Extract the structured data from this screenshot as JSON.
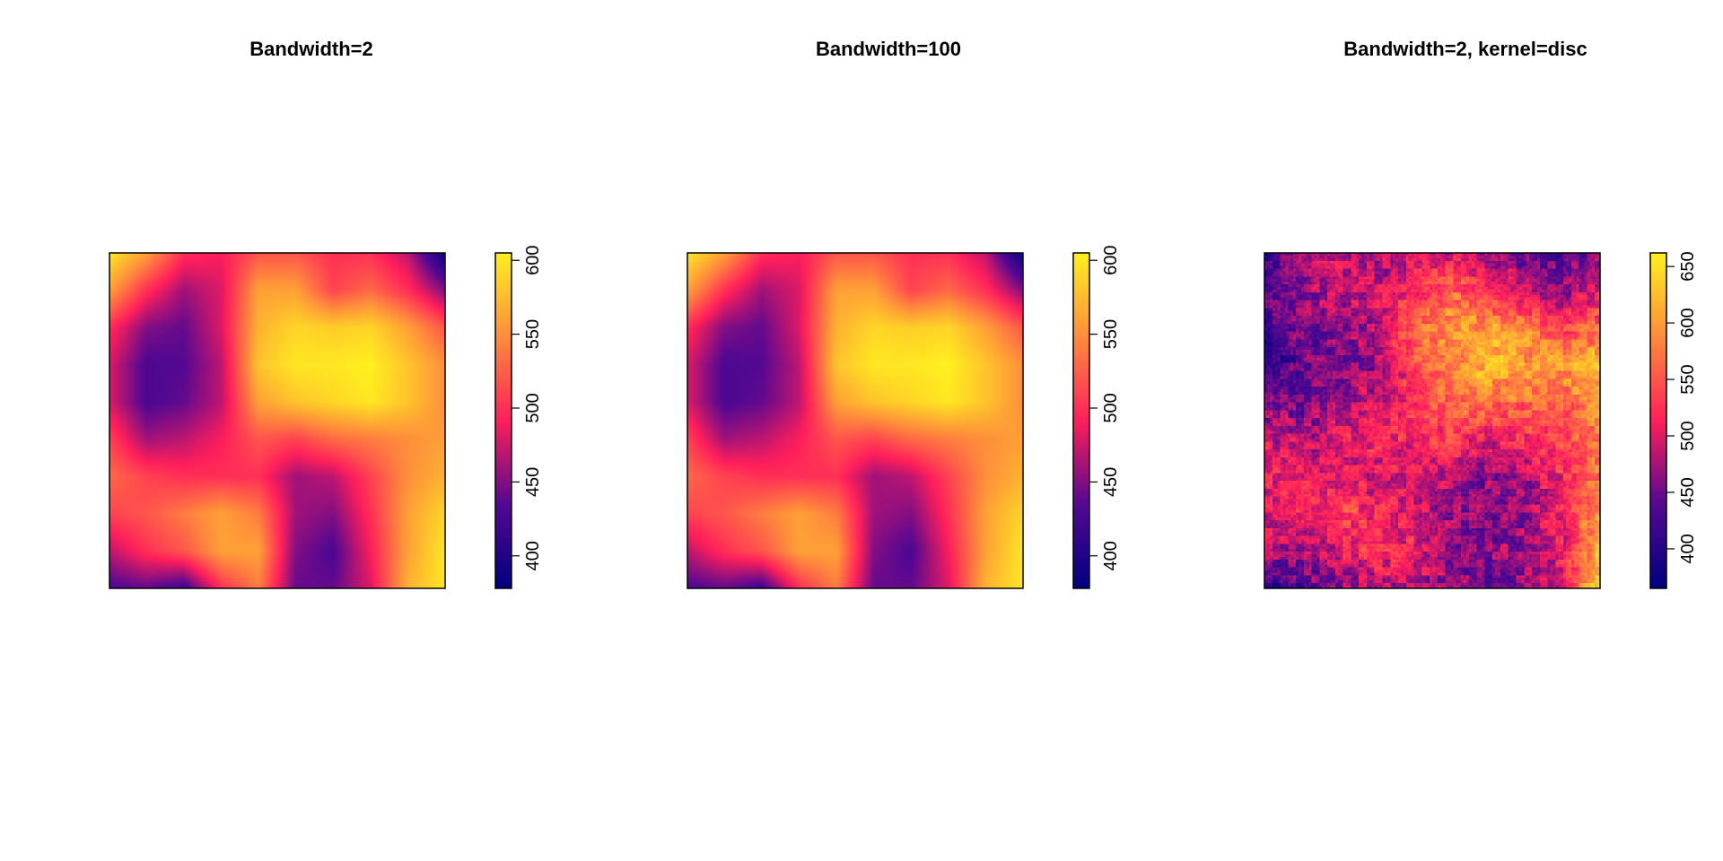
{
  "chart_data": [
    {
      "type": "heatmap",
      "title": "Bandwidth=2",
      "xlabel": "",
      "ylabel": "",
      "colorbar": {
        "range": [
          378,
          605
        ],
        "ticks": [
          400,
          450,
          500,
          550,
          600
        ]
      },
      "colors": {
        "low": "#000080",
        "mid": "#ff1f5b",
        "high": "#fff01f"
      },
      "texture": "smooth",
      "grid_rows": 10,
      "grid_cols": 10,
      "values": [
        [
          600,
          560,
          500,
          490,
          520,
          520,
          500,
          500,
          470,
          385
        ],
        [
          560,
          500,
          460,
          480,
          560,
          560,
          510,
          530,
          500,
          450
        ],
        [
          500,
          450,
          440,
          480,
          570,
          590,
          585,
          590,
          560,
          520
        ],
        [
          480,
          430,
          435,
          470,
          580,
          600,
          600,
          605,
          580,
          550
        ],
        [
          480,
          430,
          440,
          470,
          560,
          580,
          590,
          600,
          580,
          550
        ],
        [
          510,
          460,
          470,
          490,
          520,
          510,
          530,
          540,
          550,
          560
        ],
        [
          530,
          510,
          500,
          500,
          500,
          460,
          470,
          510,
          550,
          570
        ],
        [
          510,
          520,
          540,
          560,
          540,
          460,
          450,
          500,
          560,
          590
        ],
        [
          470,
          500,
          520,
          560,
          560,
          450,
          430,
          490,
          560,
          600
        ],
        [
          430,
          440,
          420,
          500,
          540,
          440,
          440,
          480,
          570,
          600
        ]
      ]
    },
    {
      "type": "heatmap",
      "title": "Bandwidth=100",
      "xlabel": "",
      "ylabel": "",
      "colorbar": {
        "range": [
          378,
          605
        ],
        "ticks": [
          400,
          450,
          500,
          550,
          600
        ]
      },
      "colors": {
        "low": "#000080",
        "mid": "#ff1f5b",
        "high": "#fff01f"
      },
      "texture": "smooth",
      "grid_rows": 10,
      "grid_cols": 10,
      "values": [
        [
          600,
          560,
          500,
          490,
          520,
          520,
          500,
          500,
          470,
          385
        ],
        [
          560,
          500,
          460,
          480,
          560,
          560,
          510,
          530,
          500,
          450
        ],
        [
          500,
          450,
          440,
          480,
          570,
          590,
          585,
          590,
          560,
          520
        ],
        [
          480,
          430,
          435,
          470,
          580,
          600,
          600,
          605,
          580,
          550
        ],
        [
          480,
          430,
          440,
          470,
          560,
          580,
          590,
          600,
          580,
          550
        ],
        [
          510,
          460,
          470,
          490,
          520,
          510,
          530,
          540,
          550,
          560
        ],
        [
          530,
          510,
          500,
          500,
          500,
          460,
          470,
          510,
          550,
          570
        ],
        [
          510,
          520,
          540,
          560,
          540,
          460,
          450,
          500,
          560,
          590
        ],
        [
          470,
          500,
          520,
          560,
          560,
          450,
          430,
          490,
          560,
          600
        ],
        [
          430,
          440,
          420,
          500,
          540,
          440,
          440,
          480,
          570,
          600
        ]
      ]
    },
    {
      "type": "heatmap",
      "title": "Bandwidth=2, kernel=disc",
      "xlabel": "",
      "ylabel": "",
      "colorbar": {
        "range": [
          365,
          662
        ],
        "ticks": [
          400,
          450,
          500,
          550,
          600,
          650
        ]
      },
      "colors": {
        "low": "#000080",
        "mid": "#ff1f5b",
        "high": "#fff01f"
      },
      "texture": "pixelated",
      "grid_rows": 10,
      "grid_cols": 10,
      "values": [
        [
          420,
          460,
          500,
          470,
          490,
          500,
          480,
          450,
          440,
          460
        ],
        [
          440,
          470,
          480,
          490,
          520,
          560,
          520,
          480,
          470,
          500
        ],
        [
          430,
          450,
          470,
          480,
          560,
          600,
          600,
          580,
          540,
          560
        ],
        [
          400,
          440,
          460,
          470,
          540,
          580,
          620,
          600,
          600,
          620
        ],
        [
          460,
          450,
          470,
          490,
          520,
          560,
          580,
          560,
          560,
          600
        ],
        [
          500,
          480,
          500,
          520,
          520,
          530,
          500,
          520,
          540,
          560
        ],
        [
          520,
          510,
          500,
          490,
          510,
          480,
          460,
          480,
          520,
          580
        ],
        [
          500,
          520,
          540,
          520,
          500,
          470,
          450,
          470,
          500,
          600
        ],
        [
          480,
          470,
          500,
          520,
          510,
          470,
          460,
          480,
          510,
          620
        ],
        [
          400,
          430,
          460,
          480,
          480,
          470,
          440,
          460,
          500,
          640
        ]
      ]
    }
  ]
}
